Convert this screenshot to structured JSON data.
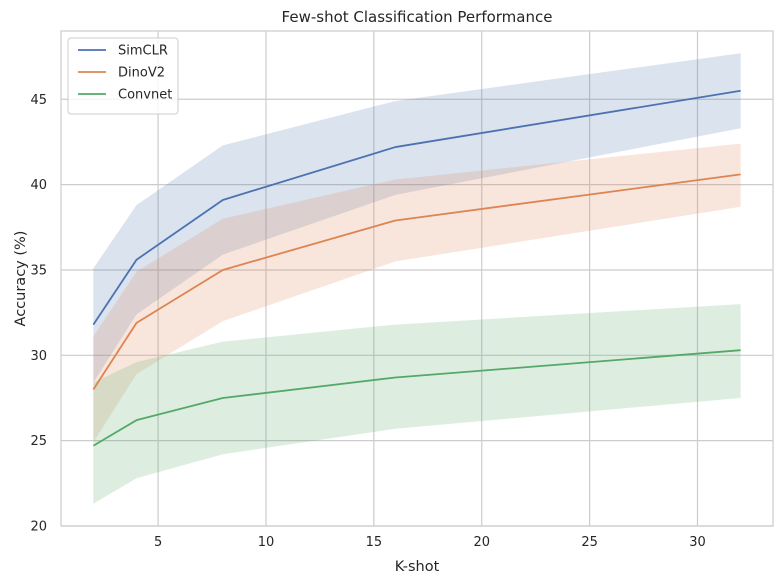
{
  "chart_data": {
    "type": "line",
    "title": "Few-shot Classification Performance",
    "xlabel": "K-shot",
    "ylabel": "Accuracy (%)",
    "x": [
      2,
      4,
      8,
      16,
      32
    ],
    "xlim": [
      0.5,
      33.5
    ],
    "ylim": [
      20,
      49
    ],
    "xticks": [
      5,
      10,
      15,
      20,
      25,
      30
    ],
    "yticks": [
      20,
      25,
      30,
      35,
      40,
      45
    ],
    "grid": true,
    "legend_position": "top-left",
    "series": [
      {
        "name": "SimCLR",
        "color": "#4c72b0",
        "values": [
          31.8,
          35.6,
          39.1,
          42.2,
          45.5
        ],
        "lower": [
          28.4,
          32.4,
          35.9,
          39.4,
          43.3
        ],
        "upper": [
          35.1,
          38.8,
          42.3,
          44.9,
          47.7
        ]
      },
      {
        "name": "DinoV2",
        "color": "#dd8452",
        "values": [
          28.0,
          31.9,
          35.0,
          37.9,
          40.6
        ],
        "lower": [
          24.9,
          28.9,
          32.0,
          35.5,
          38.7
        ],
        "upper": [
          31.1,
          34.9,
          38.0,
          40.3,
          42.4
        ]
      },
      {
        "name": "Convnet",
        "color": "#55a868",
        "values": [
          24.7,
          26.2,
          27.5,
          28.7,
          30.3
        ],
        "lower": [
          21.3,
          22.8,
          24.2,
          25.7,
          27.5
        ],
        "upper": [
          28.4,
          29.6,
          30.8,
          31.8,
          33.0
        ]
      }
    ]
  }
}
